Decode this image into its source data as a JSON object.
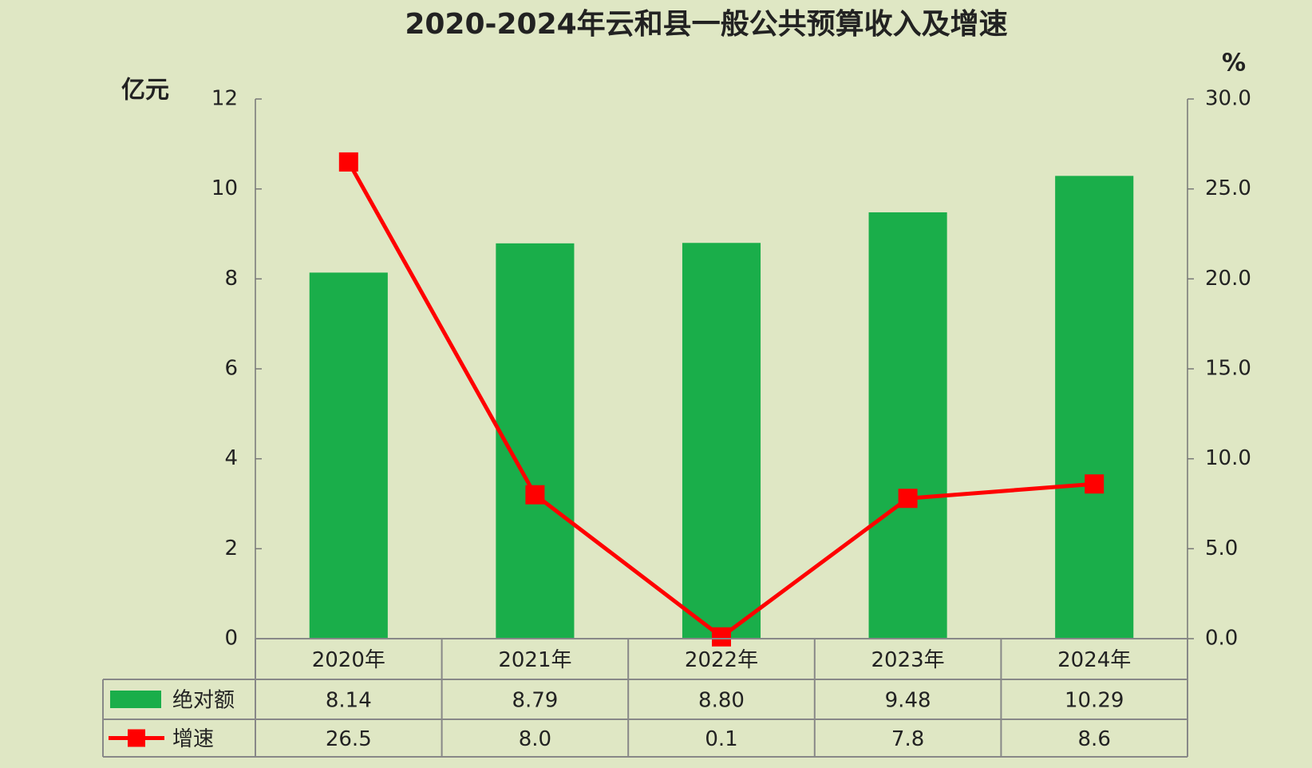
{
  "chart_data": {
    "type": "bar",
    "title": "2020-2024年云和县一般公共预算收入及增速",
    "y_label": "亿元",
    "y2_label": "%",
    "categories": [
      "2020年",
      "2021年",
      "2022年",
      "2023年",
      "2024年"
    ],
    "series": [
      {
        "name": "绝对额",
        "color": "#1aae4a",
        "values": [
          8.14,
          8.79,
          8.8,
          9.48,
          10.29
        ],
        "value_labels": [
          "8.14",
          "8.79",
          "8.80",
          "9.48",
          "10.29"
        ]
      },
      {
        "name": "增速",
        "type": "line",
        "axis": "y2",
        "color": "#ff0000",
        "values": [
          26.5,
          8.0,
          0.1,
          7.8,
          8.6
        ],
        "value_labels": [
          "26.5",
          "8.0",
          "0.1",
          "7.8",
          "8.6"
        ]
      }
    ],
    "ylim": [
      0,
      12
    ],
    "yticks": [
      0,
      2,
      4,
      6,
      8,
      10,
      12
    ],
    "y2lim": [
      0,
      30
    ],
    "y2ticks": [
      {
        "value": 0,
        "label": "0.0"
      },
      {
        "value": 5,
        "label": "5.0"
      },
      {
        "value": 10,
        "label": "10.0"
      },
      {
        "value": 15,
        "label": "15.0"
      },
      {
        "value": 20,
        "label": "20.0"
      },
      {
        "value": 25,
        "label": "25.0"
      },
      {
        "value": 30,
        "label": "30.0"
      }
    ],
    "data_table": true
  }
}
